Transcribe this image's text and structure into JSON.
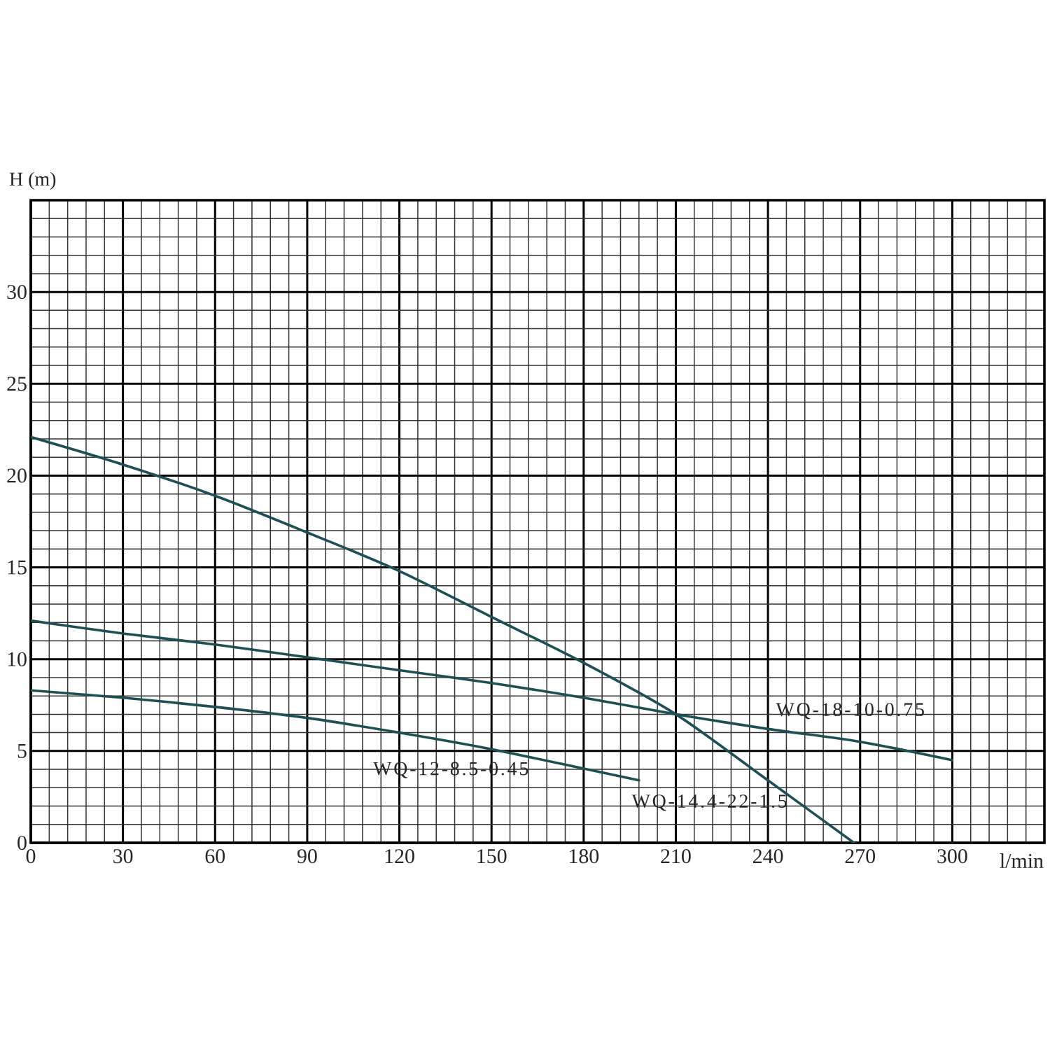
{
  "chart_data": {
    "type": "line",
    "xlabel": "l/min",
    "ylabel": "H (m)",
    "xlim": [
      0,
      330
    ],
    "ylim": [
      0,
      35
    ],
    "xticks": [
      0,
      30,
      60,
      90,
      120,
      150,
      180,
      210,
      240,
      270,
      300
    ],
    "yticks": [
      0,
      5,
      10,
      15,
      20,
      25,
      30
    ],
    "grid": true,
    "series": [
      {
        "name": "WQ-14.4-22-1.5",
        "color": "#1e4f55",
        "x": [
          0,
          30,
          60,
          90,
          120,
          150,
          180,
          210,
          240,
          268
        ],
        "values": [
          22.1,
          20.6,
          18.9,
          16.9,
          14.8,
          12.3,
          9.8,
          7.0,
          3.4,
          0
        ]
      },
      {
        "name": "WQ-18-10-0.75",
        "color": "#1e4f55",
        "x": [
          0,
          30,
          60,
          90,
          120,
          150,
          180,
          210,
          240,
          270,
          300
        ],
        "values": [
          12.1,
          11.4,
          10.8,
          10.1,
          9.4,
          8.7,
          7.9,
          7.0,
          6.2,
          5.5,
          4.5
        ]
      },
      {
        "name": "WQ-12-8.5-0.45",
        "color": "#1e4f55",
        "x": [
          0,
          30,
          60,
          90,
          120,
          150,
          198
        ],
        "values": [
          8.3,
          7.9,
          7.4,
          6.8,
          6.0,
          5.1,
          3.4
        ]
      }
    ]
  }
}
